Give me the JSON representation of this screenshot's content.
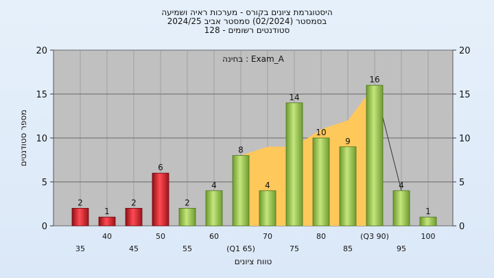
{
  "chart_data": {
    "type": "bar",
    "title_lines": [
      "היסטוגרמת ציונים בקורס - מערכות ראיה ושמיעה",
      "בסמסטר  (02/2024)  סמסטר אביב 2024/25",
      "סטודנטים רשומים - 128"
    ],
    "annotation": "בחינה : Exam_A",
    "xlabel": "טווח ציונים",
    "ylabel": "מספר סטודנטים",
    "ylim": [
      0,
      20
    ],
    "yticks": [
      0,
      5,
      10,
      15,
      20
    ],
    "categories": [
      "35",
      "40",
      "45",
      "50",
      "55",
      "60",
      "(Q1 65)",
      "70",
      "75",
      "80",
      "85",
      "(Q3 90)",
      "95",
      "100"
    ],
    "values": [
      2,
      1,
      2,
      6,
      2,
      4,
      8,
      4,
      14,
      10,
      9,
      16,
      4,
      1
    ],
    "bar_colors": [
      "red",
      "red",
      "red",
      "red",
      "green",
      "green",
      "green",
      "green",
      "green",
      "green",
      "green",
      "green",
      "green",
      "green"
    ],
    "interquartile_band": {
      "from_category": "(Q1 65)",
      "to_category": "(Q3 90)",
      "color": "#ffc85a",
      "upper_values": [
        8,
        9,
        9,
        11,
        12,
        16
      ]
    },
    "colors": {
      "plot_background": "#c0c0c0",
      "red_bar": "#e8323c",
      "green_bar": "#9ccc50",
      "band": "#ffc85a"
    },
    "grid": true
  }
}
